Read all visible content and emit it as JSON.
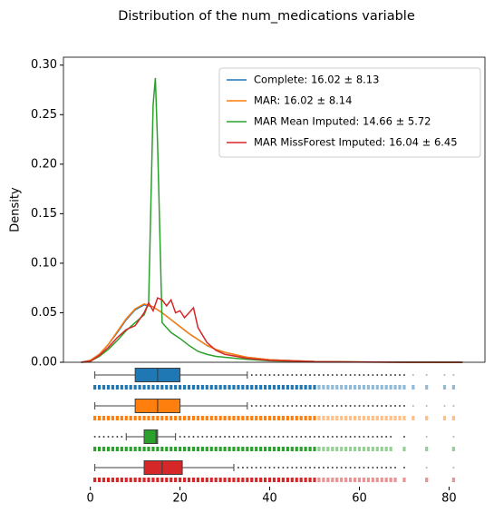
{
  "chart_data": [
    {
      "type": "line",
      "title": "Distribution of the num_medications variable",
      "y_label": "Density",
      "xlim": [
        -6,
        88
      ],
      "ylim": [
        0,
        0.308
      ],
      "yticks": [
        {
          "value": 0,
          "label": "0.00"
        },
        {
          "value": 0.05,
          "label": "0.05"
        },
        {
          "value": 0.1,
          "label": "0.10"
        },
        {
          "value": 0.15,
          "label": "0.15"
        },
        {
          "value": 0.2,
          "label": "0.20"
        },
        {
          "value": 0.25,
          "label": "0.25"
        },
        {
          "value": 0.3,
          "label": "0.30"
        }
      ],
      "legend": "upper right",
      "series": [
        {
          "name": "Complete: 16.02 ± 8.13",
          "color": "#1f77b4",
          "x": [
            -2,
            0,
            2,
            4,
            6,
            8,
            10,
            12,
            14,
            16,
            18,
            20,
            22,
            24,
            26,
            28,
            30,
            35,
            40,
            50,
            60,
            70,
            83
          ],
          "values": [
            0,
            0.002,
            0.008,
            0.018,
            0.03,
            0.043,
            0.053,
            0.058,
            0.056,
            0.05,
            0.043,
            0.036,
            0.029,
            0.023,
            0.017,
            0.013,
            0.01,
            0.005,
            0.0025,
            0.0008,
            0.0003,
            0.0001,
            0
          ]
        },
        {
          "name": "MAR: 16.02 ± 8.14",
          "color": "#ff7f0e",
          "x": [
            -2,
            0,
            2,
            4,
            6,
            8,
            10,
            12,
            14,
            16,
            18,
            20,
            22,
            24,
            26,
            28,
            30,
            35,
            40,
            50,
            60,
            70,
            83
          ],
          "values": [
            0,
            0.002,
            0.008,
            0.018,
            0.031,
            0.044,
            0.054,
            0.059,
            0.056,
            0.05,
            0.043,
            0.036,
            0.029,
            0.023,
            0.017,
            0.013,
            0.01,
            0.005,
            0.0025,
            0.0008,
            0.0003,
            0.0001,
            0
          ]
        },
        {
          "name": "MAR Mean Imputed: 14.66 ± 5.72",
          "color": "#2ca02c",
          "x": [
            -2,
            0,
            2,
            4,
            6,
            8,
            10,
            12,
            13,
            14,
            14.5,
            15,
            16,
            18,
            20,
            22,
            24,
            26,
            28,
            30,
            35,
            40,
            50,
            60,
            70,
            83
          ],
          "values": [
            0,
            0.001,
            0.006,
            0.013,
            0.022,
            0.032,
            0.04,
            0.048,
            0.06,
            0.26,
            0.287,
            0.22,
            0.04,
            0.03,
            0.024,
            0.017,
            0.011,
            0.008,
            0.006,
            0.005,
            0.003,
            0.0015,
            0.0005,
            0.0002,
            0.0001,
            0
          ]
        },
        {
          "name": "MAR MissForest Imputed: 16.04 ± 6.45",
          "color": "#d62728",
          "x": [
            -2,
            0,
            2,
            4,
            6,
            8,
            10,
            12,
            13,
            14,
            15,
            16,
            17,
            18,
            19,
            20,
            21,
            22,
            23,
            24,
            26,
            28,
            30,
            35,
            40,
            50,
            60,
            70,
            83
          ],
          "values": [
            0,
            0.001,
            0.007,
            0.015,
            0.025,
            0.033,
            0.037,
            0.05,
            0.06,
            0.052,
            0.065,
            0.063,
            0.057,
            0.063,
            0.05,
            0.052,
            0.045,
            0.05,
            0.055,
            0.035,
            0.02,
            0.012,
            0.008,
            0.004,
            0.002,
            0.0006,
            0.0002,
            0,
            0
          ]
        }
      ]
    },
    {
      "type": "box",
      "xlim": [
        -6,
        88
      ],
      "xticks": [
        0,
        20,
        40,
        60,
        80
      ],
      "boxes": [
        {
          "color": "#1f77b4",
          "whislo": 1,
          "q1": 10,
          "med": 15,
          "q3": 20,
          "whishi": 35,
          "fliers": [
            36,
            37,
            38,
            39,
            40,
            41,
            42,
            43,
            44,
            45,
            46,
            47,
            48,
            49,
            50,
            51,
            52,
            53,
            54,
            55,
            56,
            57,
            58,
            59,
            60,
            61,
            62,
            63,
            64,
            65,
            66,
            67,
            68,
            69,
            70,
            72,
            75,
            79,
            81
          ],
          "strip": [
            1,
            2,
            3,
            4,
            5,
            6,
            7,
            8,
            9,
            10,
            11,
            12,
            13,
            14,
            15,
            16,
            17,
            18,
            19,
            20,
            21,
            22,
            23,
            24,
            25,
            26,
            27,
            28,
            29,
            30,
            31,
            32,
            33,
            34,
            35,
            36,
            37,
            38,
            39,
            40,
            41,
            42,
            43,
            44,
            45,
            46,
            47,
            48,
            49,
            50,
            51,
            52,
            53,
            54,
            55,
            56,
            57,
            58,
            59,
            60,
            61,
            62,
            63,
            64,
            65,
            66,
            67,
            68,
            69,
            70,
            72,
            75,
            79,
            81
          ]
        },
        {
          "color": "#ff7f0e",
          "whislo": 1,
          "q1": 10,
          "med": 15,
          "q3": 20,
          "whishi": 35,
          "fliers": [
            36,
            37,
            38,
            39,
            40,
            41,
            42,
            43,
            44,
            45,
            46,
            47,
            48,
            49,
            50,
            51,
            52,
            53,
            54,
            55,
            56,
            57,
            58,
            59,
            60,
            61,
            62,
            63,
            64,
            65,
            66,
            67,
            68,
            69,
            70,
            72,
            75,
            79,
            81
          ],
          "strip": [
            1,
            2,
            3,
            4,
            5,
            6,
            7,
            8,
            9,
            10,
            11,
            12,
            13,
            14,
            15,
            16,
            17,
            18,
            19,
            20,
            21,
            22,
            23,
            24,
            25,
            26,
            27,
            28,
            29,
            30,
            31,
            32,
            33,
            34,
            35,
            36,
            37,
            38,
            39,
            40,
            41,
            42,
            43,
            44,
            45,
            46,
            47,
            48,
            49,
            50,
            51,
            52,
            53,
            54,
            55,
            56,
            57,
            58,
            59,
            60,
            61,
            62,
            63,
            64,
            65,
            66,
            67,
            68,
            69,
            70,
            72,
            75,
            79,
            81
          ]
        },
        {
          "color": "#2ca02c",
          "whislo": 8,
          "q1": 12,
          "med": 14.66,
          "q3": 15,
          "whishi": 19,
          "fliers": [
            1,
            2,
            3,
            4,
            5,
            6,
            7,
            20,
            21,
            22,
            23,
            24,
            25,
            26,
            27,
            28,
            29,
            30,
            31,
            32,
            33,
            34,
            35,
            36,
            37,
            38,
            39,
            40,
            41,
            42,
            43,
            44,
            45,
            46,
            47,
            48,
            49,
            50,
            51,
            52,
            53,
            54,
            55,
            56,
            57,
            58,
            59,
            60,
            61,
            62,
            63,
            64,
            65,
            66,
            67,
            70,
            75,
            81
          ],
          "strip": [
            1,
            2,
            3,
            4,
            5,
            6,
            7,
            8,
            9,
            10,
            11,
            12,
            13,
            14,
            15,
            16,
            17,
            18,
            19,
            20,
            21,
            22,
            23,
            24,
            25,
            26,
            27,
            28,
            29,
            30,
            31,
            32,
            33,
            34,
            35,
            36,
            37,
            38,
            39,
            40,
            41,
            42,
            43,
            44,
            45,
            46,
            47,
            48,
            49,
            50,
            51,
            52,
            53,
            54,
            55,
            56,
            57,
            58,
            59,
            60,
            61,
            62,
            63,
            64,
            65,
            66,
            67,
            70,
            75,
            81
          ]
        },
        {
          "color": "#d62728",
          "whislo": 1,
          "q1": 12,
          "med": 16,
          "q3": 20.5,
          "whishi": 32,
          "fliers": [
            33,
            34,
            35,
            36,
            37,
            38,
            39,
            40,
            41,
            42,
            43,
            44,
            45,
            46,
            47,
            48,
            49,
            50,
            51,
            52,
            53,
            54,
            55,
            56,
            57,
            58,
            59,
            60,
            61,
            62,
            63,
            64,
            65,
            66,
            67,
            68,
            70,
            75,
            81
          ],
          "strip": [
            1,
            2,
            3,
            4,
            5,
            6,
            7,
            8,
            9,
            10,
            11,
            12,
            13,
            14,
            15,
            16,
            17,
            18,
            19,
            20,
            21,
            22,
            23,
            24,
            25,
            26,
            27,
            28,
            29,
            30,
            31,
            32,
            33,
            34,
            35,
            36,
            37,
            38,
            39,
            40,
            41,
            42,
            43,
            44,
            45,
            46,
            47,
            48,
            49,
            50,
            51,
            52,
            53,
            54,
            55,
            56,
            57,
            58,
            59,
            60,
            61,
            62,
            63,
            64,
            65,
            66,
            67,
            68,
            70,
            75,
            81
          ]
        }
      ]
    }
  ]
}
